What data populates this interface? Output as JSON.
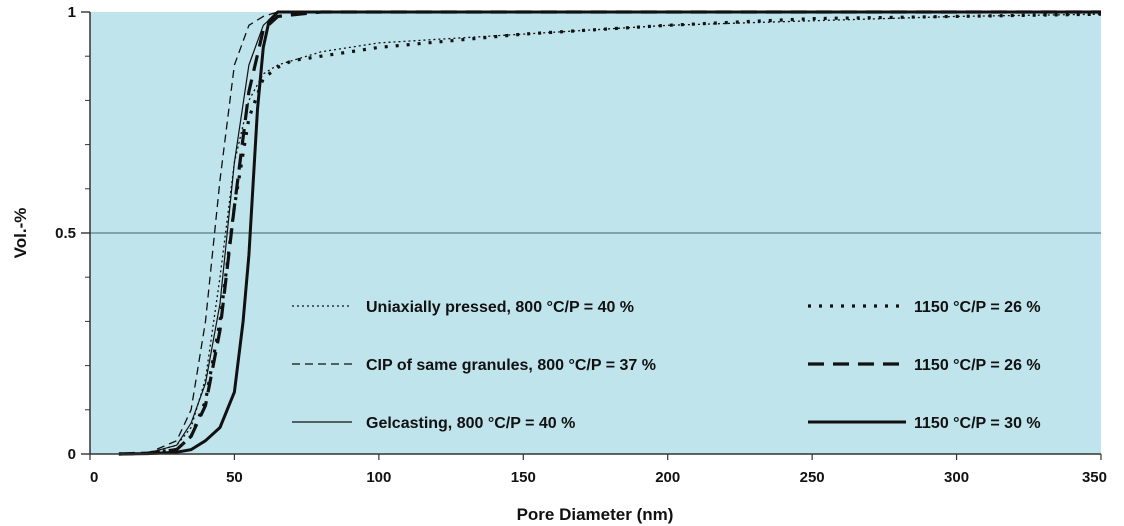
{
  "chart_data": {
    "type": "line",
    "xlabel": "Pore Diameter (nm)",
    "ylabel": "Vol.-%",
    "xlim": [
      0,
      350
    ],
    "ylim": [
      0,
      1
    ],
    "x_ticks": [
      "0",
      "50",
      "100",
      "150",
      "200",
      "250",
      "300",
      "350"
    ],
    "y_ticks": [
      "0",
      "0.5",
      "1"
    ],
    "background": "#c0e4ec",
    "reference_line_y": 0.5,
    "legend_placement": "bottom-center",
    "series": [
      {
        "name": "Uniaxially pressed, 800 °C/P = 40 %",
        "style": "thin-dotted",
        "x": [
          10,
          20,
          30,
          35,
          40,
          45,
          50,
          55,
          60,
          65,
          70,
          80,
          100,
          150,
          200,
          250,
          300,
          350
        ],
        "y": [
          0,
          0.002,
          0.02,
          0.06,
          0.17,
          0.4,
          0.66,
          0.8,
          0.86,
          0.88,
          0.89,
          0.91,
          0.93,
          0.95,
          0.97,
          0.98,
          0.99,
          0.995
        ]
      },
      {
        "name": "CIP of same granules, 800 °C/P = 37 %",
        "style": "thin-dashed",
        "x": [
          10,
          20,
          30,
          35,
          40,
          45,
          50,
          55,
          60,
          65,
          80,
          100,
          350
        ],
        "y": [
          0,
          0.002,
          0.03,
          0.1,
          0.3,
          0.62,
          0.88,
          0.97,
          0.99,
          1.0,
          1.0,
          1.0,
          1.0
        ]
      },
      {
        "name": "Gelcasting, 800 °C/P = 40 %",
        "style": "thin-solid",
        "x": [
          10,
          20,
          30,
          35,
          40,
          45,
          50,
          55,
          60,
          65,
          80,
          350
        ],
        "y": [
          0,
          0.002,
          0.02,
          0.07,
          0.16,
          0.34,
          0.66,
          0.88,
          0.97,
          1.0,
          1.0,
          1.0
        ]
      },
      {
        "name": "1150 °C/P = 26 %",
        "style": "thick-dotted",
        "x": [
          10,
          20,
          30,
          35,
          40,
          45,
          50,
          55,
          60,
          65,
          70,
          80,
          100,
          150,
          200,
          250,
          300,
          350
        ],
        "y": [
          0,
          0.002,
          0.01,
          0.04,
          0.12,
          0.3,
          0.56,
          0.76,
          0.85,
          0.875,
          0.89,
          0.9,
          0.92,
          0.95,
          0.97,
          0.985,
          0.99,
          0.995
        ]
      },
      {
        "name": "1150 °C/P = 26 %",
        "style": "thick-dashed",
        "x": [
          10,
          20,
          30,
          35,
          40,
          45,
          50,
          55,
          60,
          65,
          80,
          200,
          350
        ],
        "y": [
          0,
          0.002,
          0.01,
          0.04,
          0.11,
          0.28,
          0.56,
          0.82,
          0.96,
          0.99,
          1.0,
          1.0,
          1.0
        ]
      },
      {
        "name": "1150 °C/P = 30 %",
        "style": "thick-solid",
        "x": [
          10,
          20,
          30,
          35,
          40,
          45,
          50,
          53,
          55,
          58,
          60,
          62,
          65,
          80,
          350
        ],
        "y": [
          0,
          0.001,
          0.004,
          0.01,
          0.03,
          0.06,
          0.14,
          0.3,
          0.45,
          0.78,
          0.92,
          0.98,
          1.0,
          1.0,
          1.0
        ]
      }
    ]
  }
}
